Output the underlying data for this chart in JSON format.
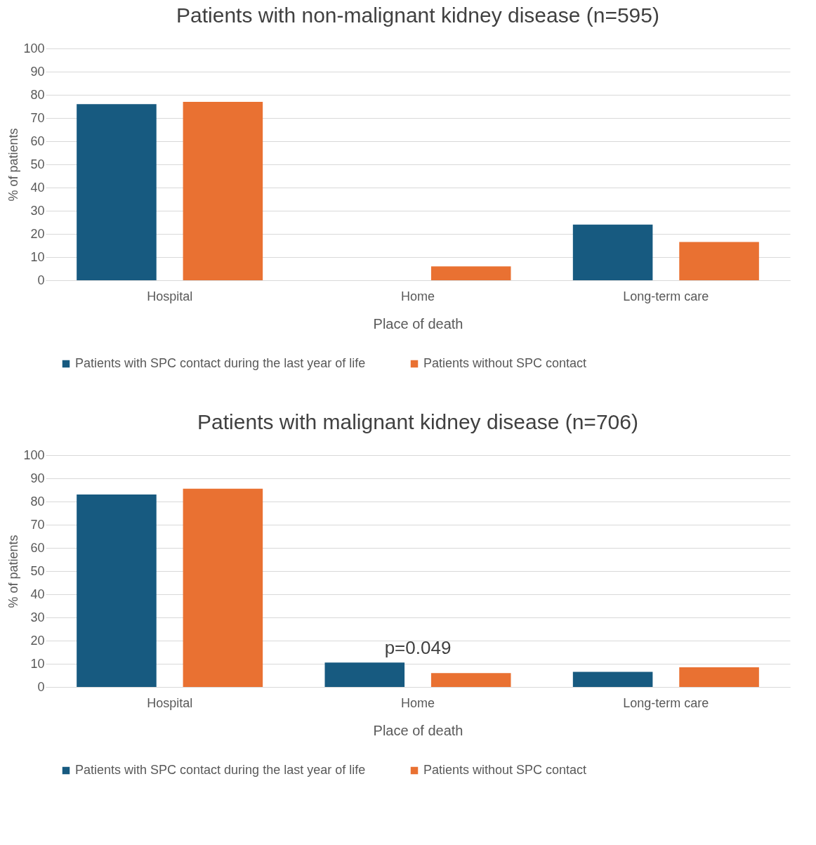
{
  "chart_data": [
    {
      "type": "bar",
      "title": "Patients with non-malignant kidney disease (n=595)",
      "xlabel": "Place of death",
      "ylabel": "% of patients",
      "categories": [
        "Hospital",
        "Home",
        "Long-term care"
      ],
      "series": [
        {
          "name": "Patients with SPC contact during the last year of life",
          "color": "#175a80",
          "values": [
            76,
            0,
            24
          ]
        },
        {
          "name": "Patients without SPC contact",
          "color": "#e97132",
          "values": [
            77,
            6,
            16.5
          ]
        }
      ],
      "ylim": [
        0,
        100
      ],
      "yticks": [
        0,
        10,
        20,
        30,
        40,
        50,
        60,
        70,
        80,
        90,
        100
      ],
      "grid": "y",
      "legend": "bottom"
    },
    {
      "type": "bar",
      "title": "Patients with malignant kidney disease (n=706)",
      "xlabel": "Place of death",
      "ylabel": "% of patients",
      "categories": [
        "Hospital",
        "Home",
        "Long-term care"
      ],
      "series": [
        {
          "name": "Patients with SPC contact during the last year of life",
          "color": "#175a80",
          "values": [
            83,
            10.5,
            6.5
          ]
        },
        {
          "name": "Patients without SPC contact",
          "color": "#e97132",
          "values": [
            85.5,
            6,
            8.5
          ]
        }
      ],
      "ylim": [
        0,
        100
      ],
      "yticks": [
        0,
        10,
        20,
        30,
        40,
        50,
        60,
        70,
        80,
        90,
        100
      ],
      "grid": "y",
      "legend": "bottom",
      "annotations": [
        "p=0.049"
      ]
    }
  ]
}
